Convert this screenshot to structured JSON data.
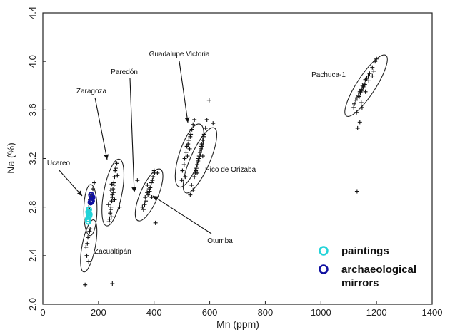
{
  "chart_data": {
    "type": "scatter",
    "xlabel": "Mn (ppm)",
    "ylabel": "Na (%)",
    "xlim": [
      0,
      1400
    ],
    "ylim": [
      2.0,
      4.4
    ],
    "x_ticks": [
      "0",
      "200",
      "400",
      "600",
      "800",
      "1000",
      "1200",
      "1400"
    ],
    "y_ticks": [
      "2.0",
      "2.4",
      "2.8",
      "3.2",
      "3.6",
      "4.0",
      "4.4"
    ],
    "grid": false,
    "legend_position": "bottom-right",
    "legend": [
      {
        "label": "paintings",
        "color": "#22d3d8",
        "marker": "open-circle"
      },
      {
        "label": "archaeological mirrors",
        "lines": [
          "archaeological",
          "mirrors"
        ],
        "color": "#1010a0",
        "marker": "open-circle"
      }
    ],
    "sources": [
      {
        "name": "Ucareo",
        "center": [
          170,
          2.84
        ],
        "span": [
          170,
          2.6,
          172,
          2.95
        ],
        "width": 30
      },
      {
        "name": "Zacualtipán",
        "center": [
          165,
          2.48
        ],
        "span": [
          150,
          2.3,
          180,
          2.66
        ],
        "width": 30
      },
      {
        "name": "Zaragoza",
        "center": [
          252,
          2.93
        ],
        "span": [
          232,
          2.68,
          272,
          3.16
        ],
        "width": 50
      },
      {
        "name": "Paredón",
        "center": [
          382,
          2.9
        ],
        "span": [
          348,
          2.72,
          416,
          3.08
        ],
        "width": 48
      },
      {
        "name": "Otumba",
        "center": [
          382,
          2.9
        ],
        "span": [
          348,
          2.72,
          416,
          3.08
        ],
        "width": 48
      },
      {
        "name": "Guadalupe Victoria",
        "center": [
          528,
          3.22
        ],
        "span": [
          495,
          3.0,
          560,
          3.45
        ],
        "width": 60
      },
      {
        "name": "Pico de Orizaba",
        "center": [
          560,
          3.18
        ],
        "span": [
          520,
          2.95,
          610,
          3.42
        ],
        "width": 55
      },
      {
        "name": "Pachuca-1",
        "center": [
          1162,
          3.8
        ],
        "span": [
          1100,
          3.58,
          1225,
          4.02
        ],
        "width": 52
      }
    ],
    "reference_points": [
      [
        155,
        2.47
      ],
      [
        162,
        2.55
      ],
      [
        168,
        2.6
      ],
      [
        158,
        2.4
      ],
      [
        165,
        2.35
      ],
      [
        152,
        2.16
      ],
      [
        170,
        2.62
      ],
      [
        160,
        2.5
      ],
      [
        165,
        2.8
      ],
      [
        170,
        2.86
      ],
      [
        175,
        2.9
      ],
      [
        180,
        2.95
      ],
      [
        172,
        2.83
      ],
      [
        178,
        2.88
      ],
      [
        185,
        3.0
      ],
      [
        168,
        2.78
      ],
      [
        240,
        2.7
      ],
      [
        245,
        2.8
      ],
      [
        250,
        2.9
      ],
      [
        255,
        3.0
      ],
      [
        260,
        3.1
      ],
      [
        242,
        2.75
      ],
      [
        248,
        2.85
      ],
      [
        252,
        2.95
      ],
      [
        258,
        3.05
      ],
      [
        262,
        3.12
      ],
      [
        244,
        2.78
      ],
      [
        250,
        2.88
      ],
      [
        256,
        2.98
      ],
      [
        246,
        2.72
      ],
      [
        254,
        2.92
      ],
      [
        236,
        2.82
      ],
      [
        266,
        3.16
      ],
      [
        238,
        2.68
      ],
      [
        248,
        2.99
      ],
      [
        258,
        2.86
      ],
      [
        244,
        2.94
      ],
      [
        268,
        3.06
      ],
      [
        276,
        2.8
      ],
      [
        250,
        2.17
      ],
      [
        340,
        3.02
      ],
      [
        362,
        2.78
      ],
      [
        368,
        2.88
      ],
      [
        375,
        2.92
      ],
      [
        382,
        2.95
      ],
      [
        390,
        3.0
      ],
      [
        396,
        3.05
      ],
      [
        402,
        3.08
      ],
      [
        370,
        2.85
      ],
      [
        378,
        2.9
      ],
      [
        386,
        2.96
      ],
      [
        394,
        3.02
      ],
      [
        366,
        2.82
      ],
      [
        384,
        2.93
      ],
      [
        400,
        3.1
      ],
      [
        358,
        2.8
      ],
      [
        376,
        2.98
      ],
      [
        392,
        2.88
      ],
      [
        405,
        2.67
      ],
      [
        412,
        3.08
      ],
      [
        502,
        3.1
      ],
      [
        510,
        3.2
      ],
      [
        518,
        3.3
      ],
      [
        525,
        3.35
      ],
      [
        532,
        3.4
      ],
      [
        540,
        3.48
      ],
      [
        508,
        3.15
      ],
      [
        515,
        3.25
      ],
      [
        522,
        3.32
      ],
      [
        530,
        3.38
      ],
      [
        520,
        3.22
      ],
      [
        512,
        3.05
      ],
      [
        528,
        3.28
      ],
      [
        536,
        3.44
      ],
      [
        545,
        3.52
      ],
      [
        500,
        3.02
      ],
      [
        535,
        2.98
      ],
      [
        545,
        3.05
      ],
      [
        550,
        3.1
      ],
      [
        555,
        3.15
      ],
      [
        560,
        3.2
      ],
      [
        565,
        3.25
      ],
      [
        570,
        3.3
      ],
      [
        575,
        3.35
      ],
      [
        580,
        3.4
      ],
      [
        548,
        3.08
      ],
      [
        558,
        3.18
      ],
      [
        568,
        3.28
      ],
      [
        578,
        3.38
      ],
      [
        585,
        3.45
      ],
      [
        552,
        3.12
      ],
      [
        562,
        3.22
      ],
      [
        572,
        3.32
      ],
      [
        540,
        2.94
      ],
      [
        590,
        3.52
      ],
      [
        530,
        2.9
      ],
      [
        598,
        3.68
      ],
      [
        612,
        3.49
      ],
      [
        575,
        3.22
      ],
      [
        555,
        3.08
      ],
      [
        1120,
        3.65
      ],
      [
        1130,
        3.7
      ],
      [
        1140,
        3.75
      ],
      [
        1150,
        3.8
      ],
      [
        1160,
        3.85
      ],
      [
        1170,
        3.88
      ],
      [
        1135,
        3.72
      ],
      [
        1145,
        3.77
      ],
      [
        1155,
        3.82
      ],
      [
        1165,
        3.86
      ],
      [
        1125,
        3.68
      ],
      [
        1142,
        3.74
      ],
      [
        1152,
        3.79
      ],
      [
        1162,
        3.84
      ],
      [
        1138,
        3.71
      ],
      [
        1148,
        3.76
      ],
      [
        1158,
        3.81
      ],
      [
        1175,
        3.9
      ],
      [
        1185,
        3.95
      ],
      [
        1195,
        4.0
      ],
      [
        1200,
        4.02
      ],
      [
        1190,
        3.92
      ],
      [
        1118,
        3.62
      ],
      [
        1128,
        3.58
      ],
      [
        1132,
        3.45
      ],
      [
        1140,
        3.5
      ],
      [
        1148,
        3.62
      ],
      [
        1160,
        3.75
      ],
      [
        1130,
        2.93
      ],
      [
        1145,
        3.66
      ],
      [
        1172,
        3.84
      ],
      [
        1185,
        3.88
      ]
    ],
    "paintings": [
      [
        162,
        2.7
      ],
      [
        165,
        2.72
      ],
      [
        168,
        2.74
      ],
      [
        164,
        2.76
      ],
      [
        166,
        2.78
      ],
      [
        163,
        2.68
      ],
      [
        167,
        2.73
      ],
      [
        165,
        2.75
      ]
    ],
    "archaeological_mirrors": [
      [
        172,
        2.84
      ],
      [
        175,
        2.86
      ],
      [
        178,
        2.88
      ],
      [
        174,
        2.9
      ],
      [
        176,
        2.85
      ]
    ]
  }
}
